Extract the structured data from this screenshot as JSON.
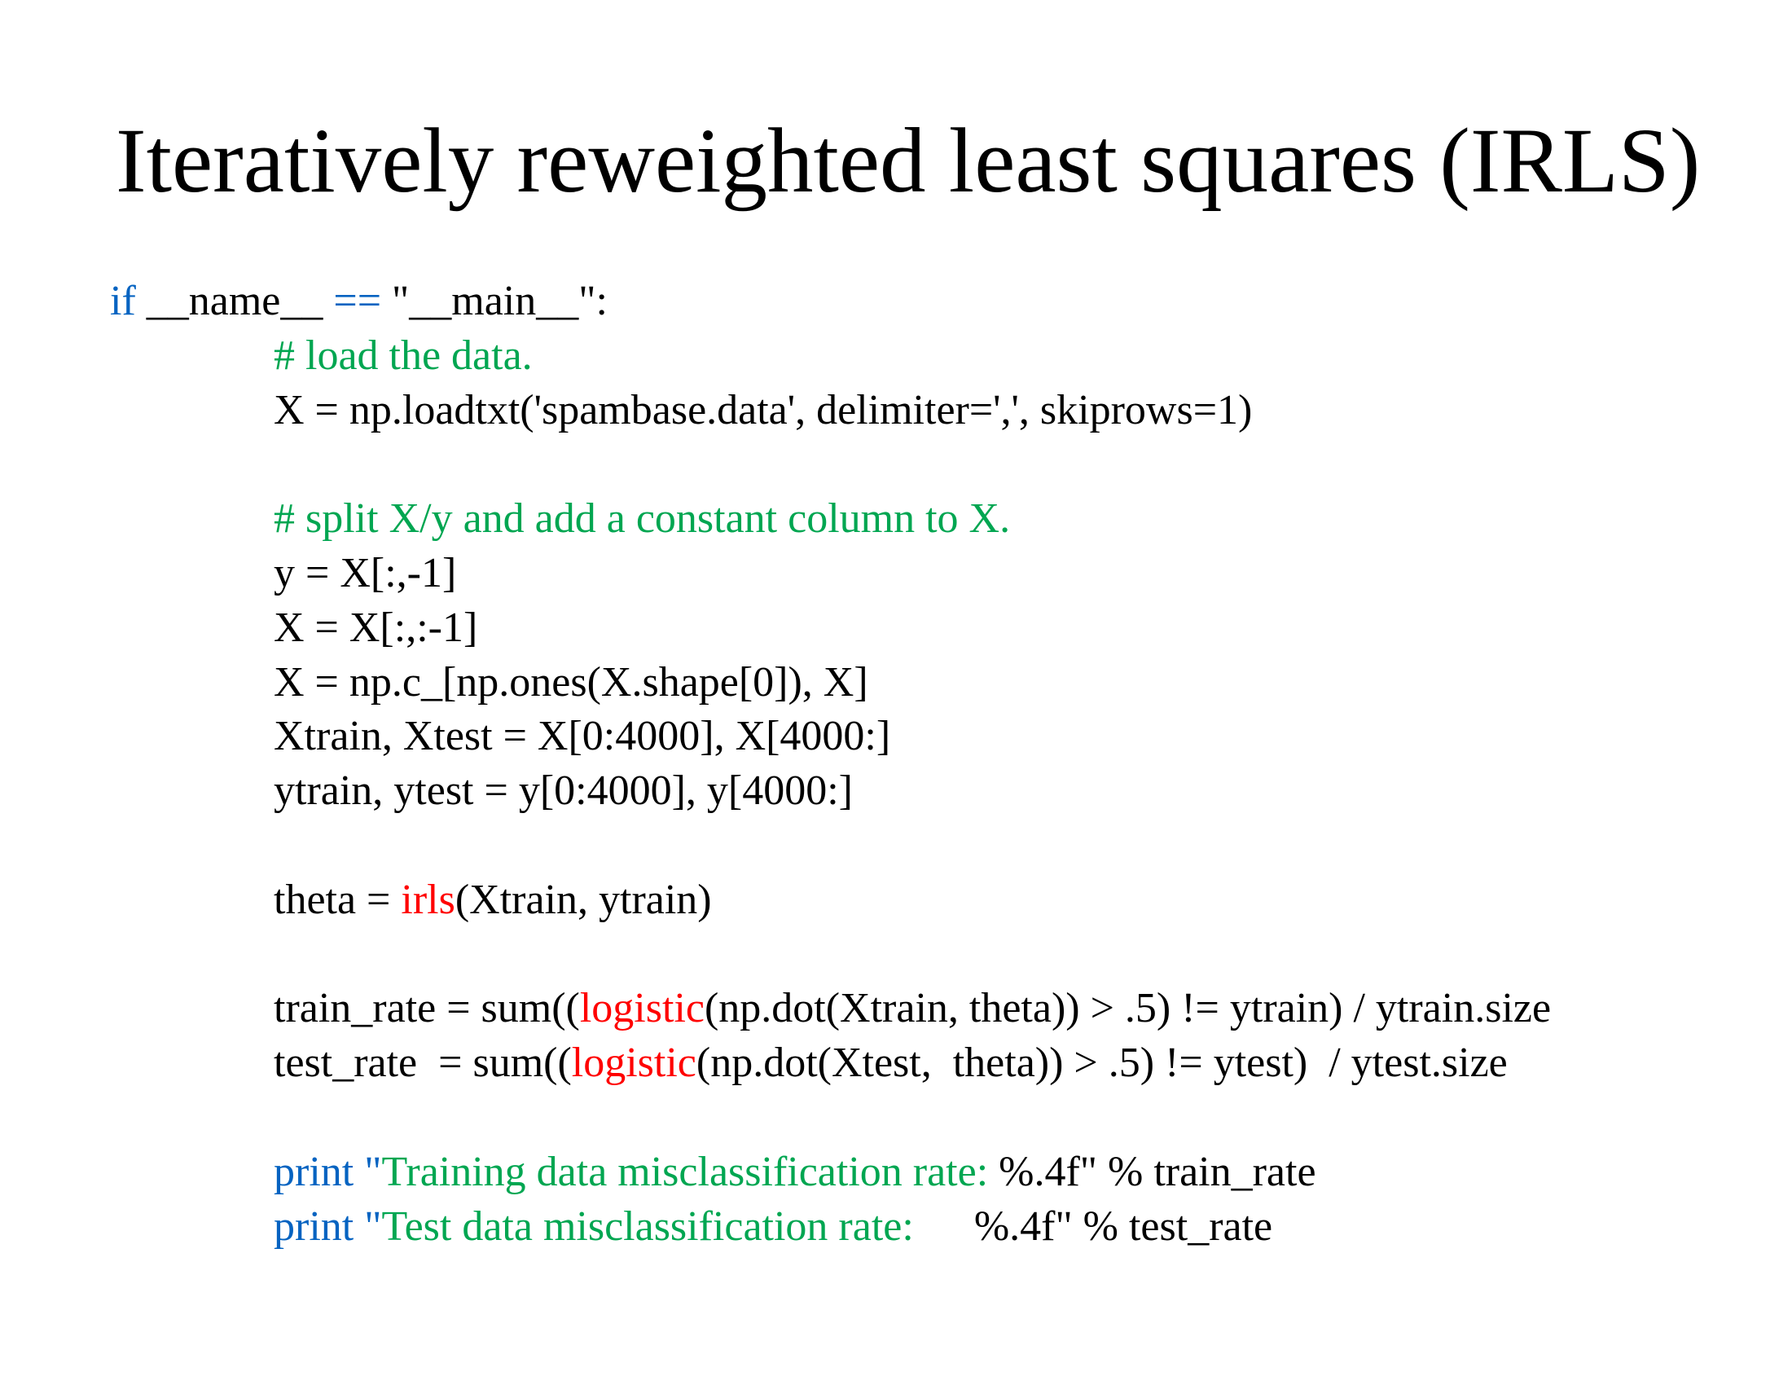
{
  "slide": {
    "title": "Iteratively reweighted least squares (IRLS)"
  },
  "colors": {
    "keyword": "#0563c1",
    "comment": "#00a651",
    "string": "#00a651",
    "function": "#ff0000",
    "text": "#000000"
  },
  "code": {
    "l1": {
      "kw_if": "if",
      "t1": " __name__ ",
      "op_eq": "==",
      "t2": " \"__main__\":"
    },
    "l2": {
      "comment": "# load the data."
    },
    "l3": {
      "text": "X = np.loadtxt('spambase.data', delimiter=',', skiprows=1)"
    },
    "l5": {
      "comment": "# split X/y and add a constant column to X."
    },
    "l6": {
      "text": "y = X[:,-1]"
    },
    "l7": {
      "text": "X = X[:,:-1]"
    },
    "l8": {
      "text": "X = np.c_[np.ones(X.shape[0]), X]"
    },
    "l9": {
      "text": "Xtrain, Xtest = X[0:4000], X[4000:]"
    },
    "l10": {
      "text": "ytrain, ytest = y[0:4000], y[4000:]"
    },
    "l12": {
      "t1": "theta = ",
      "fn": "irls",
      "t2": "(Xtrain, ytrain)"
    },
    "l14": {
      "t1": "train_rate = sum((",
      "fn": "logistic",
      "t2": "(np.dot(Xtrain, theta)) > .5) != ytrain) / ytrain.size"
    },
    "l15": {
      "t1": "test_rate  = sum((",
      "fn": "logistic",
      "t2": "(np.dot(Xtest,  theta)) > .5) != ytest)  / ytest.size"
    },
    "l17": {
      "kw": "print",
      "q": " \"",
      "str": "Training data misclassification rate: ",
      "t2": "%.4f\" % train_rate"
    },
    "l18": {
      "kw": "print",
      "q": " \"",
      "str": "Test data misclassification rate:",
      "t2": "%.4f\" % test_rate"
    }
  }
}
